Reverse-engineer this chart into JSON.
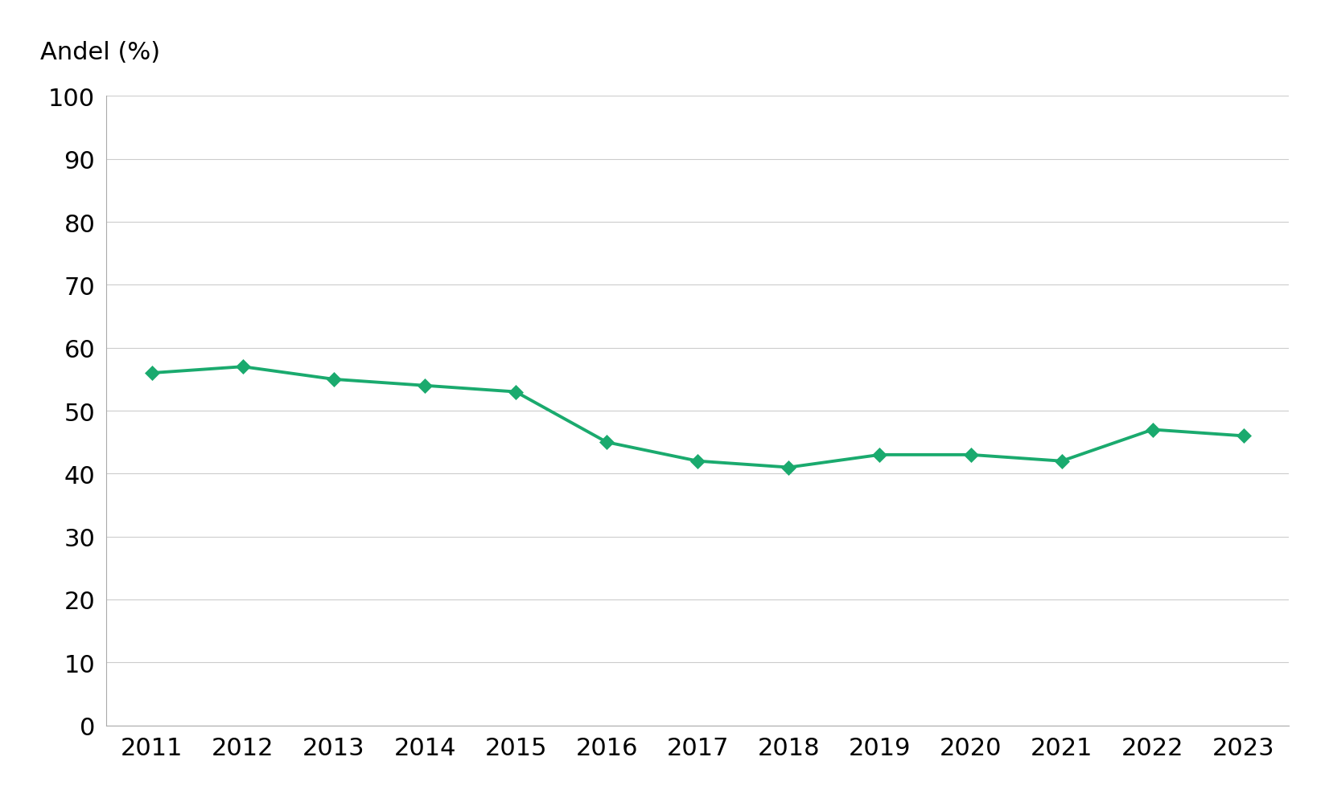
{
  "years": [
    2011,
    2012,
    2013,
    2014,
    2015,
    2016,
    2017,
    2018,
    2019,
    2020,
    2021,
    2022,
    2023
  ],
  "values": [
    56,
    57,
    55,
    54,
    53,
    45,
    42,
    41,
    43,
    43,
    42,
    47,
    46
  ],
  "line_color": "#1aaa6e",
  "marker_color": "#1aaa6e",
  "background_color": "#ffffff",
  "ylabel": "Andel (%)",
  "ylim": [
    0,
    100
  ],
  "yticks": [
    0,
    10,
    20,
    30,
    40,
    50,
    60,
    70,
    80,
    90,
    100
  ],
  "grid_color": "#cccccc",
  "axis_label_fontsize": 22,
  "tick_fontsize": 22,
  "marker_style": "D",
  "marker_size": 9,
  "line_width": 2.8
}
